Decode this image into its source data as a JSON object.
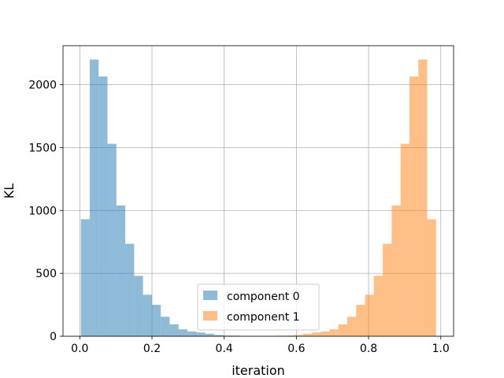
{
  "chart_data": {
    "type": "histogram",
    "xlabel": "iteration",
    "ylabel": "KL",
    "xlim": [
      -0.0465,
      1.0355
    ],
    "ylim": [
      0,
      2310
    ],
    "xticks": [
      0.0,
      0.2,
      0.4,
      0.6,
      0.8,
      1.0
    ],
    "xtick_labels": [
      "0.0",
      "0.2",
      "0.4",
      "0.6",
      "0.8",
      "1.0"
    ],
    "yticks": [
      0,
      500,
      1000,
      1500,
      2000
    ],
    "ytick_labels": [
      "0",
      "500",
      "1000",
      "1500",
      "2000"
    ],
    "grid": true,
    "legend_position": "lower center",
    "series": [
      {
        "name": "component 0",
        "color": "#1f77b4",
        "alpha": 0.5,
        "bin_width": 0.0246,
        "bin_starts": [
          0.003,
          0.0276,
          0.0522,
          0.0768,
          0.1014,
          0.126,
          0.1506,
          0.1752,
          0.1998,
          0.2244,
          0.249,
          0.2736,
          0.2982,
          0.3228,
          0.3474,
          0.372,
          0.3966,
          0.4212,
          0.4458,
          0.4704,
          0.495,
          0.5196,
          0.5442,
          0.5688,
          0.5934,
          0.618,
          0.6426,
          0.6672,
          0.6918,
          0.7164,
          0.741,
          0.7656,
          0.7902,
          0.8148,
          0.8394,
          0.864,
          0.8886,
          0.9132,
          0.9378,
          0.9624
        ],
        "counts": [
          930,
          2200,
          2065,
          1530,
          1040,
          735,
          480,
          330,
          250,
          155,
          95,
          55,
          38,
          30,
          20,
          10,
          6,
          5,
          3,
          2,
          1,
          1,
          0,
          0,
          0,
          0,
          0,
          0,
          0,
          0,
          0,
          0,
          0,
          0,
          0,
          0,
          0,
          0,
          0,
          0
        ]
      },
      {
        "name": "component 1",
        "color": "#ff7f0e",
        "alpha": 0.5,
        "bin_width": 0.0246,
        "bin_starts": [
          0.003,
          0.0276,
          0.0522,
          0.0768,
          0.1014,
          0.126,
          0.1506,
          0.1752,
          0.1998,
          0.2244,
          0.249,
          0.2736,
          0.2982,
          0.3228,
          0.3474,
          0.372,
          0.3966,
          0.4212,
          0.4458,
          0.4704,
          0.495,
          0.5196,
          0.5442,
          0.5688,
          0.5934,
          0.618,
          0.6426,
          0.6672,
          0.6918,
          0.7164,
          0.741,
          0.7656,
          0.7902,
          0.8148,
          0.8394,
          0.864,
          0.8886,
          0.9132,
          0.9378,
          0.9624
        ],
        "counts": [
          0,
          0,
          0,
          0,
          0,
          0,
          0,
          0,
          0,
          0,
          0,
          0,
          0,
          0,
          0,
          0,
          0,
          0,
          1,
          1,
          2,
          3,
          5,
          6,
          10,
          20,
          30,
          38,
          55,
          95,
          155,
          250,
          330,
          480,
          735,
          1040,
          1530,
          2065,
          2200,
          930
        ]
      }
    ]
  }
}
